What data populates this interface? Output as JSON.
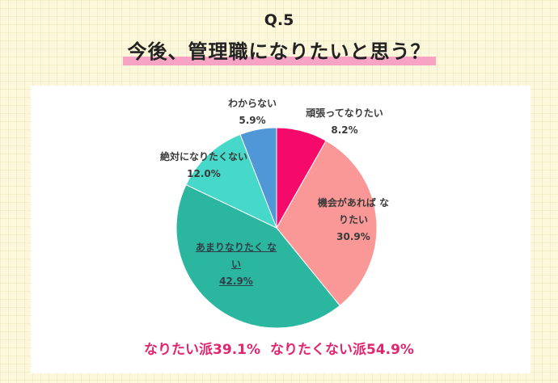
{
  "header": {
    "question_number": "Q.5",
    "title": "今後、管理職になりたいと思う？"
  },
  "chart_data": {
    "type": "pie",
    "slices": [
      {
        "label": "頑張ってなりたい",
        "value": 8.2,
        "value_label": "8.2%",
        "color": "#f5096a"
      },
      {
        "label": "機会があれば なりたい",
        "value": 30.9,
        "value_label": "30.9%",
        "color": "#fa9897"
      },
      {
        "label": "あまりなりたく ない",
        "value": 42.9,
        "value_label": "42.9%",
        "color": "#2bb6a0"
      },
      {
        "label": "絶対になりたくない",
        "value": 12.0,
        "value_label": "12.0%",
        "color": "#46d8c8"
      },
      {
        "label": "わからない",
        "value": 5.9,
        "value_label": "5.9%",
        "color": "#4f97d6"
      }
    ],
    "start_angle_deg": 0,
    "direction": "clockwise"
  },
  "summary": {
    "want": "なりたい派39.1%",
    "not_want": "なりたくない派54.9%"
  }
}
